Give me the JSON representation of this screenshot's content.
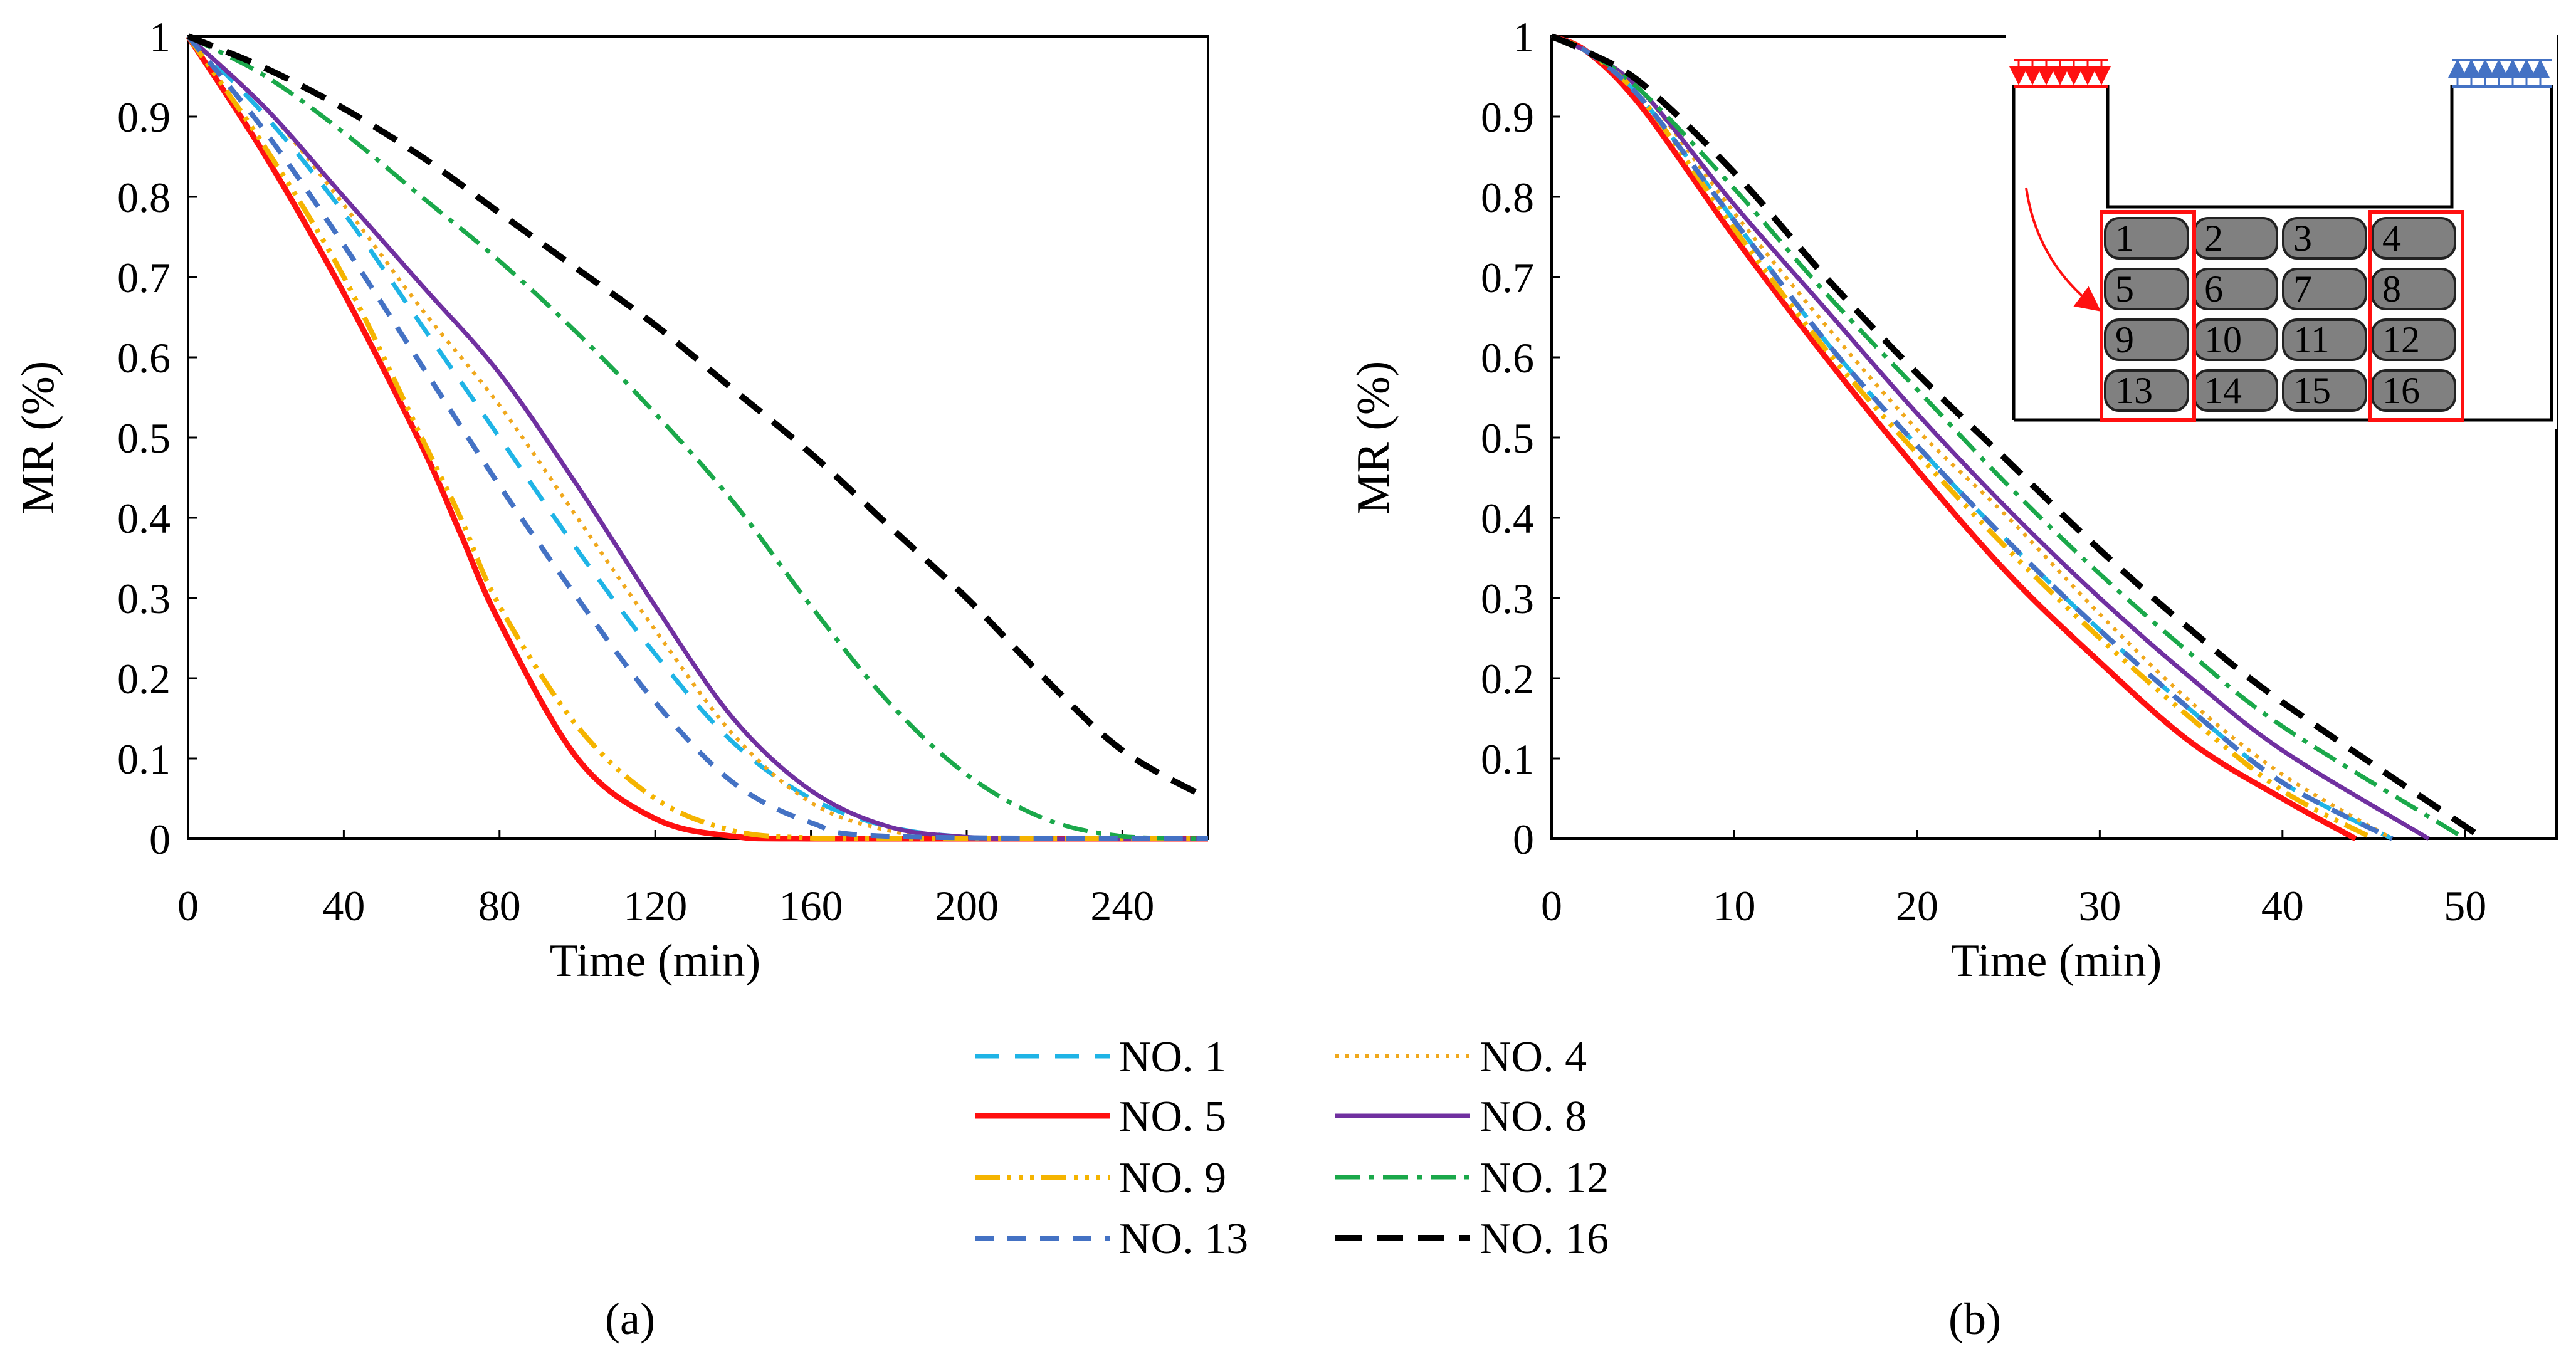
{
  "panels": [
    {
      "label": "(a)",
      "ylabel": "MR (%)",
      "xlabel": "Time (min)",
      "xlim": [
        0,
        262
      ],
      "ylim": [
        0,
        1
      ],
      "xticks": [
        0,
        40,
        80,
        120,
        160,
        200,
        240
      ],
      "yticks": [
        0,
        0.1,
        0.2,
        0.3,
        0.4,
        0.5,
        0.6,
        0.7,
        0.8,
        0.9,
        1
      ]
    },
    {
      "label": "(b)",
      "ylabel": "MR (%)",
      "xlabel": "Time (min)",
      "xlim": [
        0,
        55
      ],
      "ylim": [
        0,
        1
      ],
      "xticks": [
        0,
        10,
        20,
        30,
        40,
        50
      ],
      "yticks": [
        0,
        0.1,
        0.2,
        0.3,
        0.4,
        0.5,
        0.6,
        0.7,
        0.8,
        0.9,
        1
      ]
    }
  ],
  "legend": [
    {
      "key": "no1",
      "label": "NO. 1",
      "color": "#1fb4e6",
      "dash": "38 26",
      "width": 7
    },
    {
      "key": "no4",
      "label": "NO. 4",
      "color": "#f0a81c",
      "dash": "6 10",
      "width": 6
    },
    {
      "key": "no5",
      "label": "NO. 5",
      "color": "#ff1010",
      "dash": "",
      "width": 9
    },
    {
      "key": "no8",
      "label": "NO. 8",
      "color": "#7030a0",
      "dash": "",
      "width": 7
    },
    {
      "key": "no9",
      "label": "NO. 9",
      "color": "#f5b400",
      "dash": "40 12 6 12 6 12 6 12",
      "width": 8
    },
    {
      "key": "no12",
      "label": "NO. 12",
      "color": "#1aa84a",
      "dash": "40 14 8 14",
      "width": 7
    },
    {
      "key": "no13",
      "label": "NO. 13",
      "color": "#4472c4",
      "dash": "30 22",
      "width": 8
    },
    {
      "key": "no16",
      "label": "NO. 16",
      "color": "#000000",
      "dash": "42 24",
      "width": 10
    }
  ],
  "chart_data": [
    {
      "type": "line",
      "panel": "(a)",
      "xlabel": "Time (min)",
      "ylabel": "MR (%)",
      "xlim": [
        0,
        262
      ],
      "ylim": [
        0,
        1
      ],
      "grid": false,
      "legend_position": "bottom",
      "series": [
        {
          "name": "NO. 1",
          "x": [
            0,
            20,
            40,
            60,
            80,
            100,
            120,
            140,
            160,
            180,
            200,
            220,
            262
          ],
          "y": [
            1,
            0.9,
            0.78,
            0.64,
            0.5,
            0.36,
            0.23,
            0.12,
            0.05,
            0.015,
            0.002,
            0,
            0
          ]
        },
        {
          "name": "NO. 4",
          "x": [
            0,
            20,
            40,
            60,
            80,
            100,
            120,
            140,
            160,
            180,
            200,
            220,
            262
          ],
          "y": [
            1,
            0.91,
            0.79,
            0.66,
            0.54,
            0.4,
            0.26,
            0.13,
            0.045,
            0.01,
            0,
            0,
            0
          ]
        },
        {
          "name": "NO. 5",
          "x": [
            0,
            20,
            40,
            60,
            70,
            80,
            100,
            120,
            140,
            160,
            262
          ],
          "y": [
            1,
            0.85,
            0.68,
            0.49,
            0.38,
            0.27,
            0.1,
            0.025,
            0.003,
            0,
            0
          ]
        },
        {
          "name": "NO. 8",
          "x": [
            0,
            20,
            40,
            60,
            80,
            100,
            120,
            140,
            160,
            180,
            200,
            220,
            262
          ],
          "y": [
            1,
            0.91,
            0.8,
            0.69,
            0.58,
            0.44,
            0.29,
            0.15,
            0.06,
            0.015,
            0.002,
            0,
            0
          ]
        },
        {
          "name": "NO. 9",
          "x": [
            0,
            20,
            40,
            60,
            70,
            80,
            100,
            120,
            140,
            160,
            180,
            262
          ],
          "y": [
            1,
            0.86,
            0.7,
            0.5,
            0.4,
            0.29,
            0.14,
            0.05,
            0.01,
            0.001,
            0,
            0
          ]
        },
        {
          "name": "NO. 12",
          "x": [
            0,
            20,
            40,
            60,
            80,
            100,
            120,
            140,
            160,
            180,
            200,
            220,
            240,
            262
          ],
          "y": [
            1,
            0.95,
            0.88,
            0.8,
            0.72,
            0.63,
            0.53,
            0.42,
            0.29,
            0.17,
            0.08,
            0.025,
            0.003,
            0
          ]
        },
        {
          "name": "NO. 13",
          "x": [
            0,
            20,
            40,
            60,
            80,
            100,
            120,
            140,
            160,
            180,
            262
          ],
          "y": [
            1,
            0.88,
            0.74,
            0.59,
            0.44,
            0.3,
            0.17,
            0.07,
            0.02,
            0.003,
            0
          ]
        },
        {
          "name": "NO. 16",
          "x": [
            0,
            20,
            40,
            60,
            80,
            100,
            120,
            140,
            160,
            180,
            200,
            220,
            240,
            262
          ],
          "y": [
            1,
            0.96,
            0.91,
            0.85,
            0.78,
            0.71,
            0.64,
            0.56,
            0.48,
            0.39,
            0.3,
            0.2,
            0.11,
            0.05
          ]
        }
      ]
    },
    {
      "type": "line",
      "panel": "(b)",
      "xlabel": "Time (min)",
      "ylabel": "MR (%)",
      "xlim": [
        0,
        55
      ],
      "ylim": [
        0,
        1
      ],
      "grid": false,
      "legend_position": "bottom",
      "series": [
        {
          "name": "NO. 1",
          "x": [
            0,
            2,
            5,
            10,
            15,
            20,
            25,
            30,
            35,
            40,
            46
          ],
          "y": [
            1,
            0.98,
            0.92,
            0.77,
            0.62,
            0.49,
            0.37,
            0.26,
            0.16,
            0.07,
            0
          ]
        },
        {
          "name": "NO. 4",
          "x": [
            0,
            2,
            5,
            10,
            15,
            20,
            25,
            30,
            35,
            40,
            46
          ],
          "y": [
            1,
            0.98,
            0.93,
            0.78,
            0.64,
            0.51,
            0.4,
            0.28,
            0.17,
            0.08,
            0
          ]
        },
        {
          "name": "NO. 5",
          "x": [
            0,
            2,
            5,
            10,
            15,
            20,
            25,
            30,
            35,
            40,
            44
          ],
          "y": [
            1,
            0.98,
            0.91,
            0.75,
            0.6,
            0.46,
            0.33,
            0.22,
            0.12,
            0.05,
            0
          ]
        },
        {
          "name": "NO. 8",
          "x": [
            0,
            2,
            5,
            10,
            15,
            20,
            25,
            30,
            35,
            40,
            48
          ],
          "y": [
            1,
            0.98,
            0.93,
            0.79,
            0.66,
            0.53,
            0.41,
            0.3,
            0.2,
            0.11,
            0
          ]
        },
        {
          "name": "NO. 9",
          "x": [
            0,
            2,
            5,
            10,
            15,
            20,
            25,
            30,
            35,
            40,
            45
          ],
          "y": [
            1,
            0.98,
            0.92,
            0.76,
            0.61,
            0.48,
            0.36,
            0.25,
            0.15,
            0.06,
            0
          ]
        },
        {
          "name": "NO. 12",
          "x": [
            0,
            2,
            5,
            10,
            15,
            20,
            25,
            30,
            35,
            40,
            50
          ],
          "y": [
            1,
            0.98,
            0.93,
            0.81,
            0.68,
            0.56,
            0.44,
            0.33,
            0.23,
            0.14,
            0
          ]
        },
        {
          "name": "NO. 13",
          "x": [
            0,
            2,
            5,
            10,
            15,
            20,
            25,
            30,
            35,
            40,
            46
          ],
          "y": [
            1,
            0.98,
            0.92,
            0.77,
            0.62,
            0.49,
            0.37,
            0.26,
            0.16,
            0.07,
            0
          ]
        },
        {
          "name": "NO. 16",
          "x": [
            0,
            2,
            5,
            10,
            15,
            20,
            25,
            30,
            35,
            40,
            51
          ],
          "y": [
            1,
            0.98,
            0.94,
            0.83,
            0.7,
            0.58,
            0.47,
            0.36,
            0.26,
            0.17,
            0
          ]
        }
      ]
    }
  ],
  "inset": {
    "cells": [
      "1",
      "2",
      "3",
      "4",
      "5",
      "6",
      "7",
      "8",
      "9",
      "10",
      "11",
      "12",
      "13",
      "14",
      "15",
      "16"
    ],
    "colors": {
      "inlet": "#ff1010",
      "outlet": "#4472c4",
      "highlight": "#ff1010",
      "cell_fill": "#808080"
    }
  }
}
